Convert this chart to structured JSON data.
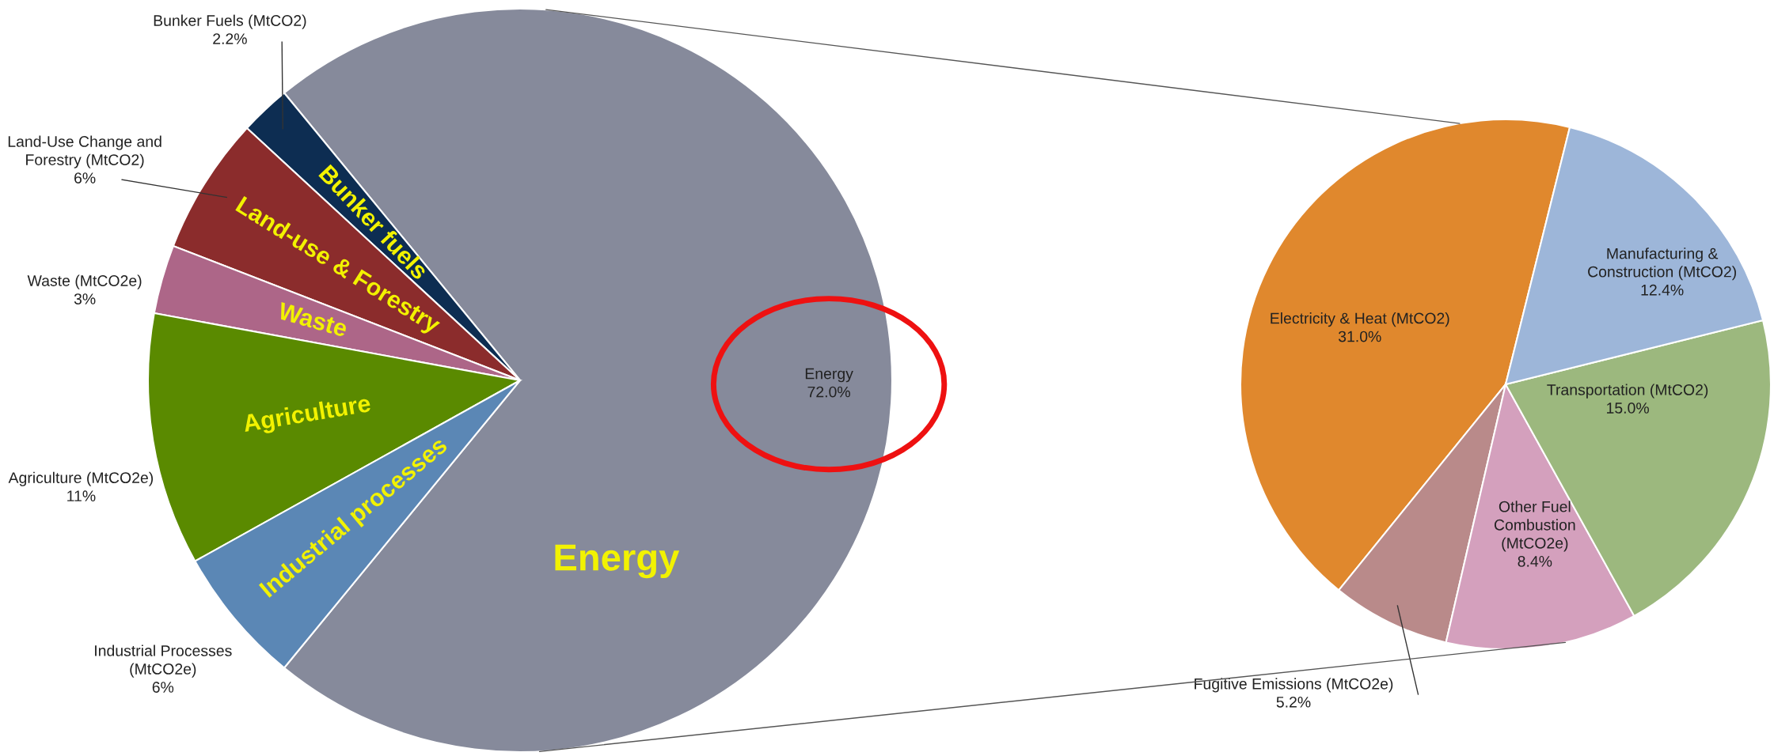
{
  "chart_data": [
    {
      "type": "pie",
      "categories": [
        "Energy",
        "Bunker Fuels (MtCO2)",
        "Land-Use Change and\nForestry (MtCO2)",
        "Waste (MtCO2e)",
        "Agriculture (MtCO2e)",
        "Industrial Processes\n(MtCO2e)"
      ],
      "values": [
        72.0,
        2.2,
        6,
        3,
        11,
        6
      ],
      "colors": [
        "#868a9b",
        "#0d2d52",
        "#8b2c2c",
        "#ad6688",
        "#5a8a00",
        "#5b87b5"
      ],
      "value_labels": [
        "72.0%",
        "2.2%",
        "6%",
        "3%",
        "11%",
        "6%"
      ],
      "annotations": [
        "Energy",
        "Bunker fuels",
        "Land-use & Forestry",
        "Waste",
        "Agriculture",
        "Industrial processes"
      ]
    },
    {
      "type": "pie",
      "categories": [
        "Electricity & Heat (MtCO2)",
        "Fugitive Emissions (MtCO2e)",
        "Other Fuel\nCombustion\n(MtCO2e)",
        "Transportation (MtCO2)",
        "Manufacturing &\nConstruction (MtCO2)"
      ],
      "values": [
        31.0,
        5.2,
        8.4,
        15.0,
        12.4
      ],
      "colors": [
        "#e0882d",
        "#b98a8a",
        "#d4a0bd",
        "#9cb87e",
        "#9db6d9"
      ],
      "value_labels": [
        "31.0%",
        "5.2%",
        "8.4%",
        "15.0%",
        "12.4%"
      ]
    }
  ]
}
